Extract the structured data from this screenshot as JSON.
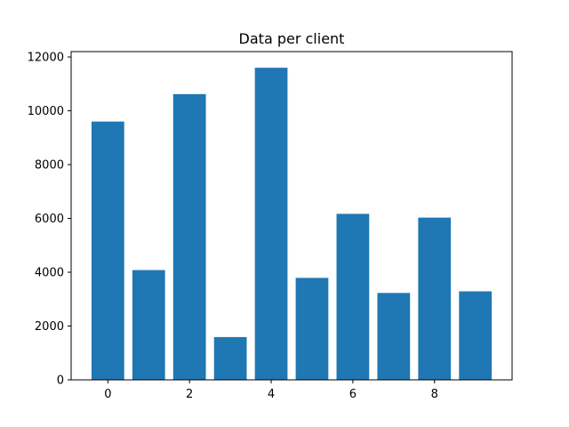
{
  "chart_data": {
    "type": "bar",
    "title": "Data per client",
    "xlabel": "",
    "ylabel": "",
    "categories": [
      0,
      1,
      2,
      3,
      4,
      5,
      6,
      7,
      8,
      9
    ],
    "values": [
      9600,
      4080,
      10620,
      1590,
      11600,
      3790,
      6170,
      3230,
      6030,
      3290
    ],
    "bar_color": "#1f77b4",
    "xlim": [
      -0.9,
      9.9
    ],
    "ylim": [
      0,
      12200
    ],
    "xticks": [
      0,
      2,
      4,
      6,
      8
    ],
    "xtick_labels": [
      "0",
      "2",
      "4",
      "6",
      "8"
    ],
    "yticks": [
      0,
      2000,
      4000,
      6000,
      8000,
      10000,
      12000
    ],
    "ytick_labels": [
      "0",
      "2000",
      "4000",
      "6000",
      "8000",
      "10000",
      "12000"
    ],
    "grid": false,
    "legend": false
  }
}
